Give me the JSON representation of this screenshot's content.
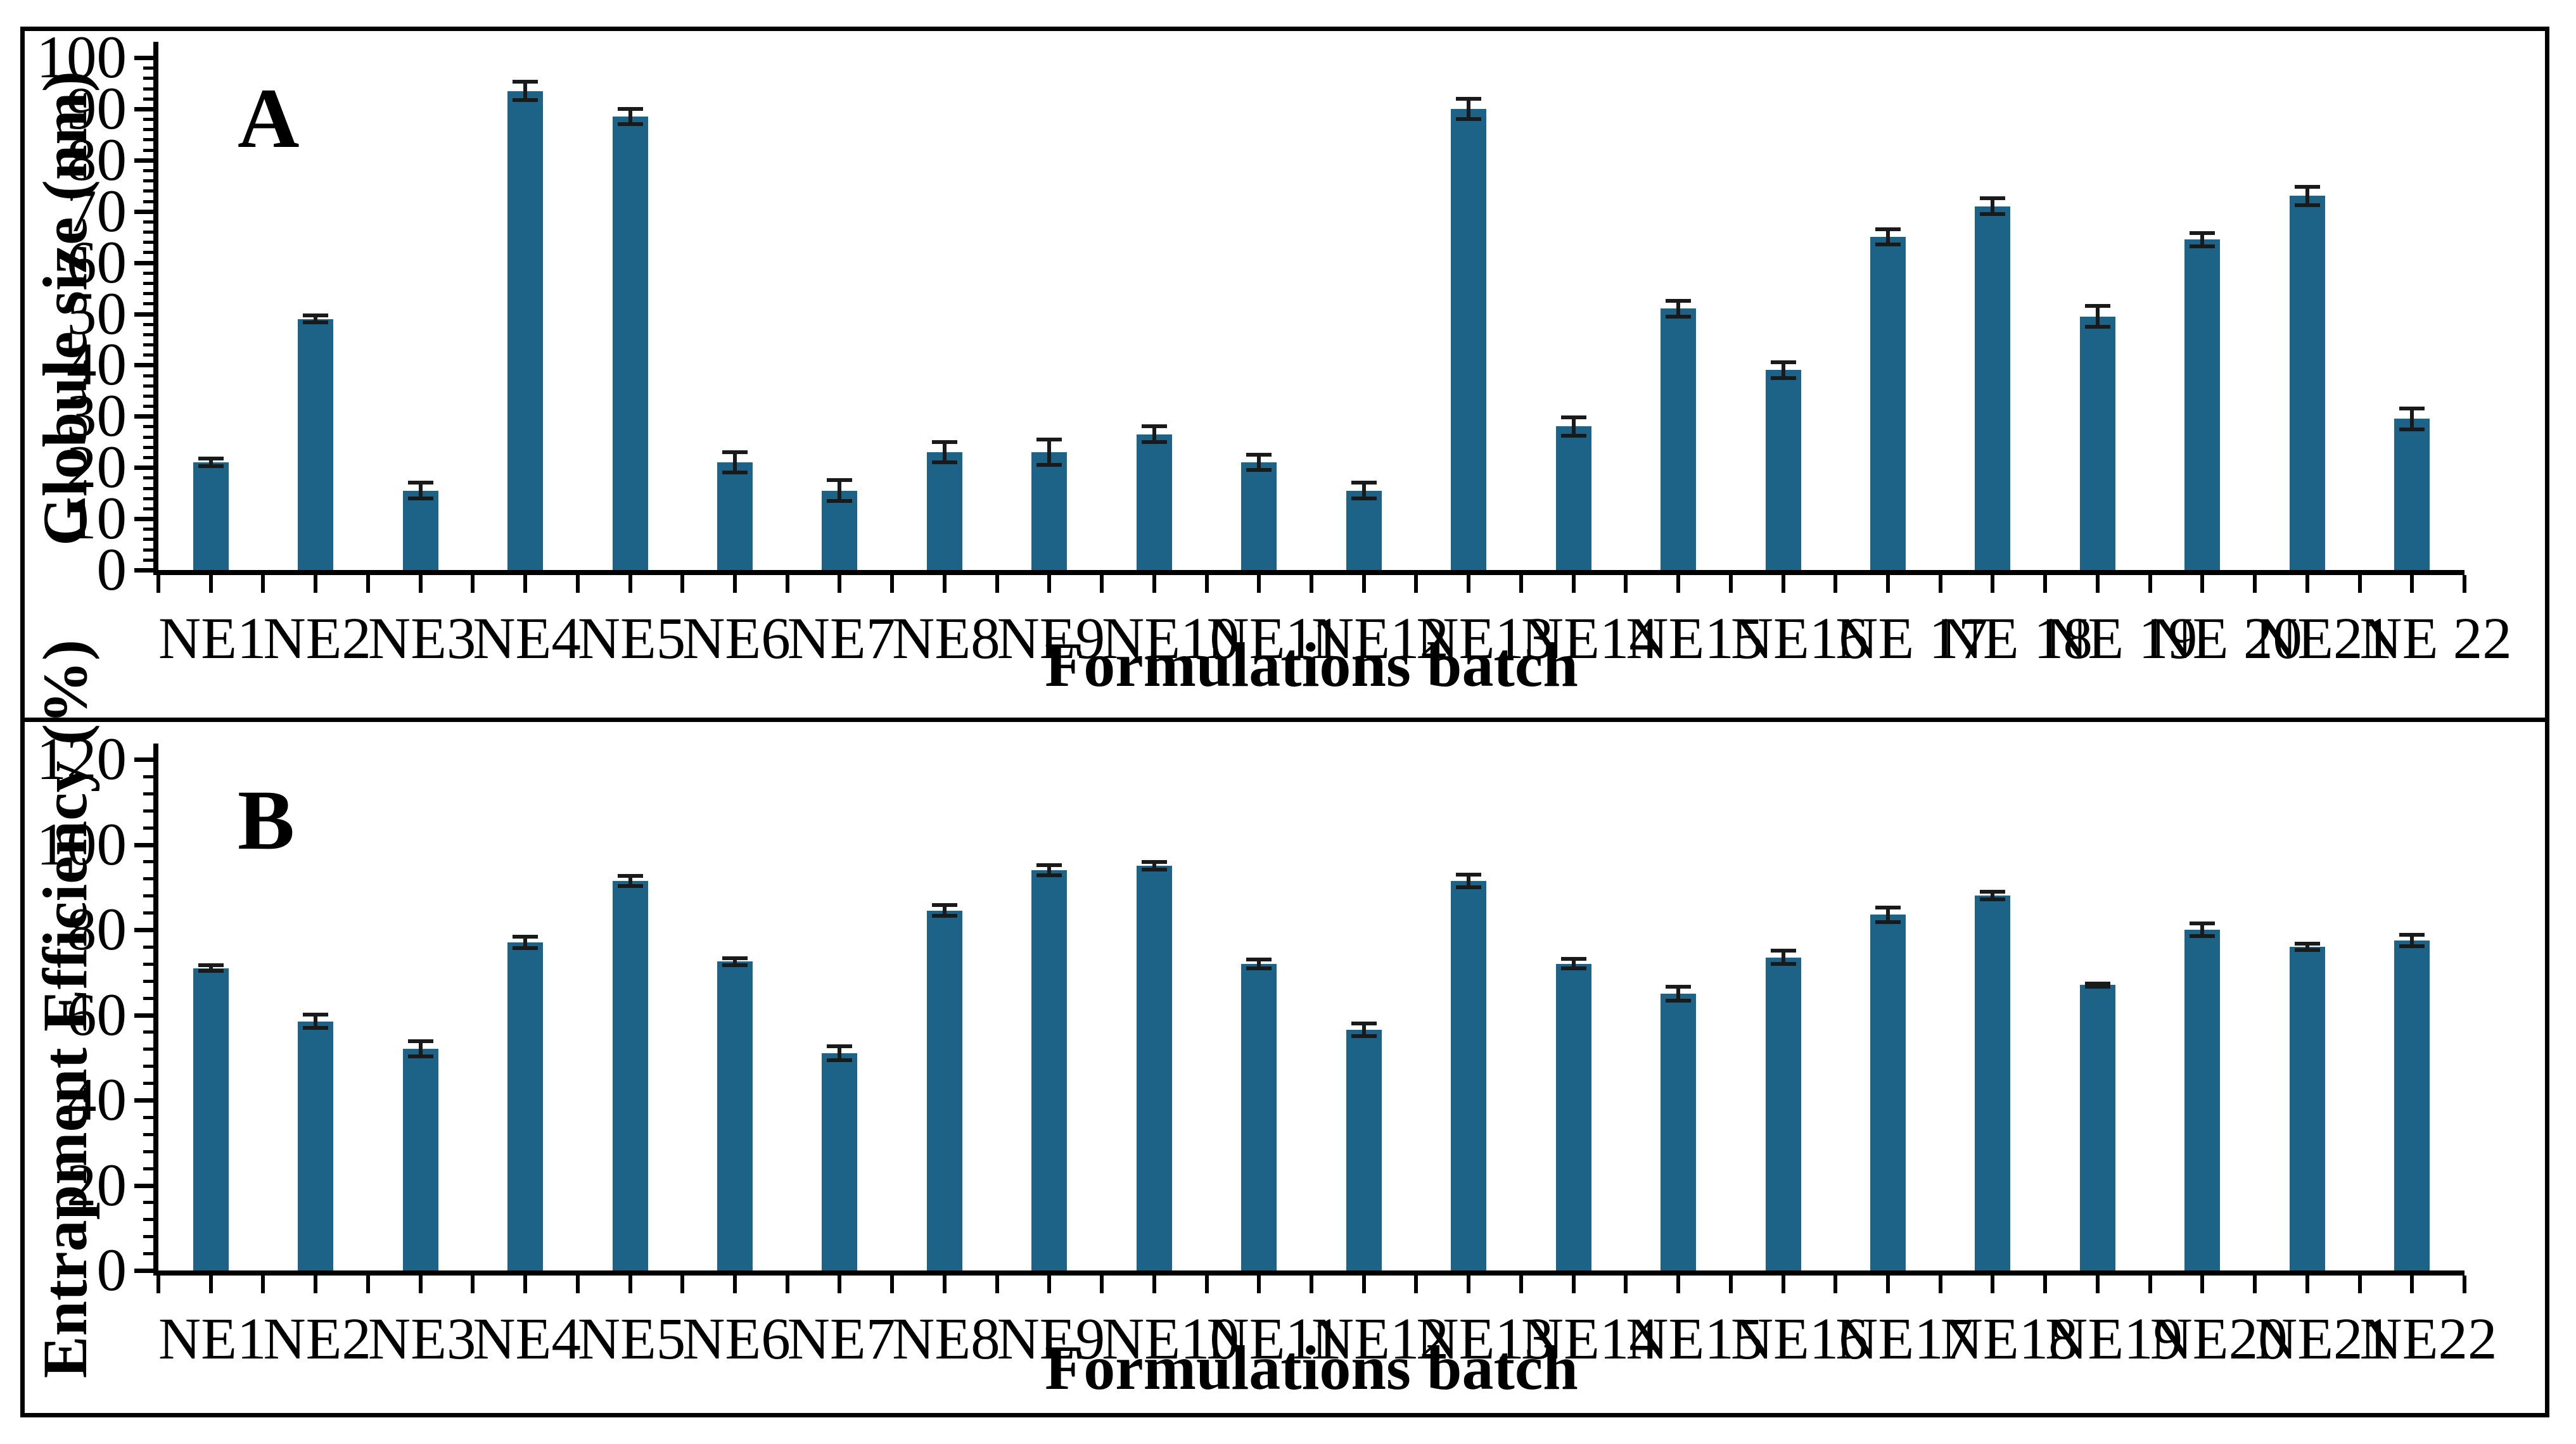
{
  "figure": {
    "panels": [
      "A",
      "B"
    ],
    "background_color": "#ffffff",
    "border_color": "#000000",
    "bar_color": "#1d6287",
    "error_bar_color": "#1a1a1a"
  },
  "chart_data": [
    {
      "panel": "A",
      "type": "bar",
      "title": "",
      "xlabel": "Formulations batch",
      "ylabel": "Globule size (nm)",
      "ylim": [
        0,
        100
      ],
      "ytick_step": 10,
      "yminor_step": 2,
      "grid": false,
      "legend_position": "none",
      "categories": [
        "NE1",
        "NE2",
        "NE3",
        "NE4",
        "NE5",
        "NE6",
        "NE7",
        "NE8",
        "NE9",
        "NE10",
        "NE11",
        "NE12",
        "NE13",
        "NE14",
        "NE15",
        "NE16",
        "NE 17",
        "NE 18",
        "NE 19",
        "NE 20",
        "NE21",
        "NE 22"
      ],
      "values": [
        21,
        49,
        15.5,
        93.5,
        88.5,
        21,
        15.5,
        23,
        23,
        26.5,
        21,
        15.5,
        90,
        28,
        51,
        39,
        65,
        71,
        49.5,
        64.5,
        73,
        29.5
      ],
      "errors": [
        0.7,
        0.7,
        1.5,
        1.8,
        1.5,
        2,
        2,
        2,
        2.5,
        1.5,
        1.5,
        1.5,
        2,
        1.8,
        1.5,
        1.5,
        1.5,
        1.5,
        2,
        1.3,
        1.8,
        2
      ],
      "bar_color": "#1d6287"
    },
    {
      "panel": "B",
      "type": "bar",
      "title": "",
      "xlabel": "Formulations batch",
      "ylabel": "Entrapment Efficiency (%)",
      "ylim": [
        0,
        120
      ],
      "ytick_step": 20,
      "yminor_step": 4,
      "grid": false,
      "legend_position": "none",
      "categories": [
        "NE1",
        "NE2",
        "NE3",
        "NE4",
        "NE5",
        "NE6",
        "NE7",
        "NE8",
        "NE9",
        "NE10",
        "NE11",
        "NE12",
        "NE13",
        "NE14",
        "NE15",
        "NE16",
        "NE17",
        "NE18",
        "NE19",
        "NE20",
        "NE21",
        "NE22"
      ],
      "values": [
        71,
        58.5,
        52,
        77,
        91.5,
        72.5,
        51,
        84.5,
        94,
        95,
        72,
        56.5,
        91.5,
        72,
        65,
        73.5,
        83.5,
        88,
        67,
        80,
        76,
        77.5
      ],
      "errors": [
        0.6,
        1.6,
        1.8,
        1.3,
        1.2,
        0.8,
        1.7,
        1.3,
        1.2,
        0.9,
        1.0,
        1.5,
        1.5,
        1.1,
        1.6,
        1.6,
        1.7,
        0.9,
        0.4,
        1.5,
        0.8,
        1.3
      ],
      "bar_color": "#1d6287"
    }
  ]
}
